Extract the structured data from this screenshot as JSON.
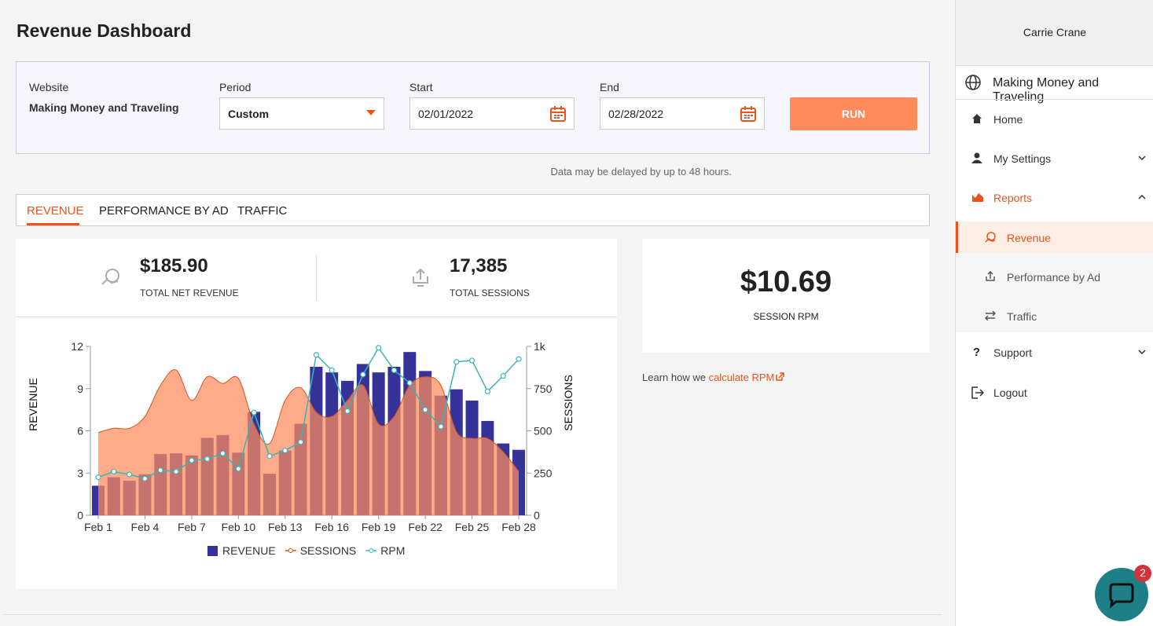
{
  "header": {
    "title": "Revenue Dashboard"
  },
  "filters": {
    "website_label": "Website",
    "website_value": "Making Money and Traveling",
    "period_label": "Period",
    "period_value": "Custom",
    "start_label": "Start",
    "start_value": "02/01/2022",
    "end_label": "End",
    "end_value": "02/28/2022",
    "run": "RUN"
  },
  "notice": "Data may be delayed by up to 48 hours.",
  "tabs": [
    "REVENUE",
    "PERFORMANCE BY AD",
    "TRAFFIC"
  ],
  "stats": {
    "revenue_value": "$185.90",
    "revenue_label": "TOTAL NET REVENUE",
    "sessions_value": "17,385",
    "sessions_label": "TOTAL SESSIONS"
  },
  "rpm": {
    "value": "$10.69",
    "label": "SESSION RPM"
  },
  "learn": {
    "text": "Learn how we",
    "link": "calculate RPM"
  },
  "sidebar": {
    "user": "Carrie Crane",
    "site": "Making Money and Traveling",
    "nav": [
      "Home",
      "My Settings",
      "Reports",
      "Revenue",
      "Performance by Ad",
      "Traffic",
      "Support",
      "Logout"
    ]
  },
  "chat_badge": "2",
  "chart_data": {
    "type": "combo",
    "ylabel": "REVENUE",
    "y2label": "SESSIONS",
    "categories": [
      "Feb 1",
      null,
      null,
      "Feb 4",
      null,
      null,
      "Feb 7",
      null,
      null,
      "Feb 10",
      null,
      null,
      "Feb 13",
      null,
      null,
      "Feb 16",
      null,
      null,
      "Feb 19",
      null,
      null,
      "Feb 22",
      null,
      null,
      "Feb 25",
      null,
      null,
      "Feb 28"
    ],
    "ylim": [
      0,
      12
    ],
    "yticks": [
      0,
      3,
      6,
      9,
      12
    ],
    "y2lim": [
      0,
      1000
    ],
    "y2ticks": [
      0,
      250,
      500,
      750,
      {
        "value": 1000,
        "label": "1k"
      }
    ],
    "series": [
      {
        "name": "REVENUE",
        "type": "bar",
        "color": "#35339a",
        "values": [
          2.1,
          2.7,
          2.45,
          2.9,
          4.35,
          4.4,
          4.25,
          5.5,
          5.7,
          4.45,
          7.35,
          2.95,
          4.6,
          6.5,
          10.55,
          10.15,
          9.55,
          10.75,
          10.15,
          10.55,
          11.6,
          10.25,
          8.5,
          8.95,
          8.15,
          6.7,
          5.1,
          4.65
        ]
      },
      {
        "name": "SESSIONS",
        "type": "area",
        "color": "#ff8a5b",
        "axis": "y2",
        "values": [
          490,
          515,
          515,
          585,
          770,
          860,
          680,
          820,
          780,
          810,
          540,
          425,
          680,
          755,
          610,
          585,
          680,
          770,
          540,
          585,
          770,
          820,
          770,
          495,
          455,
          455,
          375,
          260
        ]
      },
      {
        "name": "RPM",
        "type": "line",
        "color": "#3ab5b5",
        "values": [
          2.7,
          3.1,
          2.9,
          2.6,
          3.2,
          3.1,
          3.9,
          4.0,
          4.4,
          3.3,
          7.3,
          4.2,
          4.6,
          5.2,
          11.4,
          10.3,
          7.4,
          10.0,
          11.9,
          10.3,
          9.4,
          7.5,
          6.3,
          10.9,
          11.0,
          8.8,
          9.9,
          11.1
        ]
      }
    ]
  }
}
